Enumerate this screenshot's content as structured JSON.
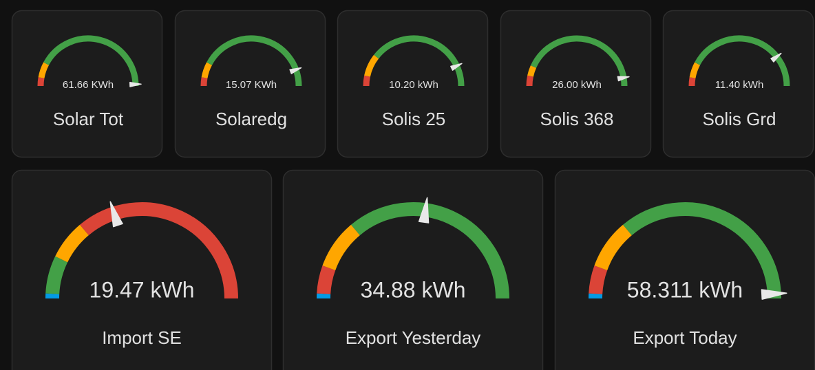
{
  "cards": [
    {
      "value": "61.66 KWh",
      "name": "Solar Tot"
    },
    {
      "value": "15.07 KWh",
      "name": "Solaredg"
    },
    {
      "value": "10.20 kWh",
      "name": "Solis 25"
    },
    {
      "value": "26.00 kWh",
      "name": "Solis 368"
    },
    {
      "value": "11.40 kWh",
      "name": "Solis Grd"
    },
    {
      "value": "19.47 kWh",
      "name": "Import SE"
    },
    {
      "value": "34.88 kWh",
      "name": "Export Yesterday"
    },
    {
      "value": "58.311 kWh",
      "name": "Export Today"
    }
  ]
}
